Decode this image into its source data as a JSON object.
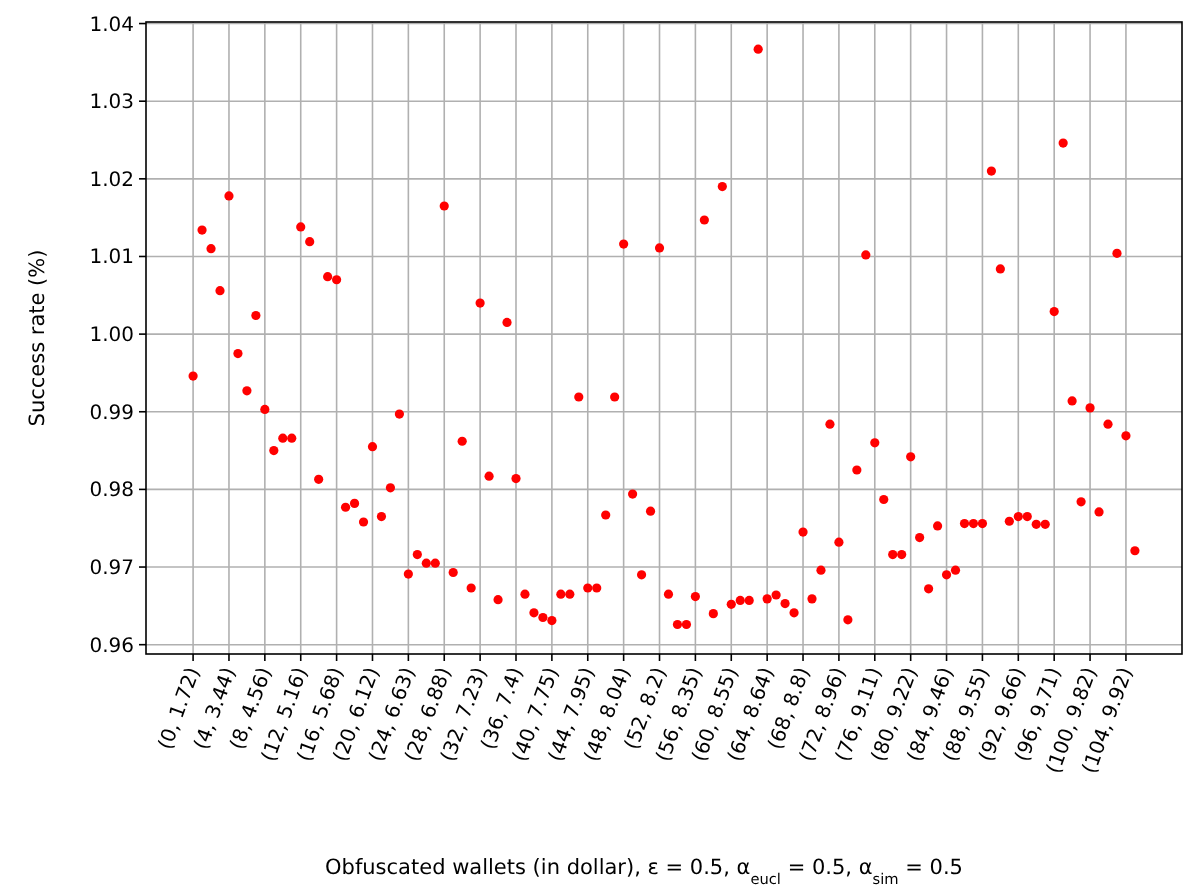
{
  "chart_data": {
    "type": "scatter",
    "xlabel": "Obfuscated wallets (in dollar), ε = 0.5, α$_{eucl}$  = 0.5, α$_{sim}$  = 0.5",
    "ylabel": "Success rate (%)",
    "categories": [
      "(0, 1.72)",
      null,
      null,
      null,
      "(4, 3.44)",
      null,
      null,
      null,
      "(8, 4.56)",
      null,
      null,
      null,
      "(12, 5.16)",
      null,
      null,
      null,
      "(16, 5.68)",
      null,
      null,
      null,
      "(20, 6.12)",
      null,
      null,
      null,
      "(24, 6.63)",
      null,
      null,
      null,
      "(28, 6.88)",
      null,
      null,
      null,
      "(32, 7.23)",
      null,
      null,
      null,
      "(36, 7.4)",
      null,
      null,
      null,
      "(40, 7.75)",
      null,
      null,
      null,
      "(44, 7.95)",
      null,
      null,
      null,
      "(48, 8.04)",
      null,
      null,
      null,
      "(52, 8.2)",
      null,
      null,
      null,
      "(56, 8.35)",
      null,
      null,
      null,
      "(60, 8.55)",
      null,
      null,
      null,
      "(64, 8.64)",
      null,
      null,
      null,
      "(68, 8.8)",
      null,
      null,
      null,
      "(72, 8.96)",
      null,
      null,
      null,
      "(76, 9.11)",
      null,
      null,
      null,
      "(80, 9.22)",
      null,
      null,
      null,
      "(84, 9.46)",
      null,
      null,
      null,
      "(88, 9.55)",
      null,
      null,
      null,
      "(92, 9.66)",
      null,
      null,
      null,
      "(96, 9.71)",
      null,
      null,
      null,
      "(100, 9.82)",
      null,
      null,
      null,
      "(104, 9.92)",
      null
    ],
    "series": [
      {
        "color": "#ff0000",
        "values": [
          0.9946,
          1.0134,
          1.011,
          1.0056,
          1.0178,
          0.9975,
          0.9927,
          1.0024,
          0.9903,
          0.985,
          0.9866,
          0.9866,
          1.0138,
          1.0119,
          0.9813,
          1.0074,
          1.007,
          0.9777,
          0.9782,
          0.9758,
          0.9855,
          0.9765,
          0.9802,
          0.9897,
          0.9691,
          0.9716,
          0.9705,
          0.9705,
          1.0165,
          0.9693,
          0.9862,
          0.9673,
          1.004,
          0.9817,
          0.9658,
          1.0015,
          0.9814,
          0.9665,
          0.9641,
          0.9635,
          0.9631,
          0.9665,
          0.9665,
          0.9919,
          0.9673,
          0.9673,
          0.9767,
          0.9919,
          1.0116,
          0.9794,
          0.969,
          0.9772,
          1.0111,
          0.9665,
          0.9626,
          0.9626,
          0.9662,
          1.0147,
          0.964,
          1.019,
          0.9652,
          0.9657,
          0.9657,
          1.0367,
          0.9659,
          0.9664,
          0.9653,
          0.9641,
          0.9745,
          0.9659,
          0.9696,
          0.9884,
          0.9732,
          0.9632,
          0.9825,
          1.0102,
          0.986,
          0.9787,
          0.9716,
          0.9716,
          0.9842,
          0.9738,
          0.9672,
          0.9753,
          0.969,
          0.9696,
          0.9756,
          0.9756,
          0.9756,
          1.021,
          1.0084,
          0.9759,
          0.9765,
          0.9765,
          0.9755,
          0.9755,
          1.0029,
          1.0246,
          0.9914,
          0.9784,
          0.9905,
          0.9771,
          0.9884,
          1.0104,
          0.9869,
          0.9721
        ]
      }
    ],
    "ylim": [
      0.9588,
      1.0402
    ],
    "yticks": [
      {
        "value": 0.96,
        "label": "0.96"
      },
      {
        "value": 0.97,
        "label": "0.97"
      },
      {
        "value": 0.98,
        "label": "0.98"
      },
      {
        "value": 0.99,
        "label": "0.99"
      },
      {
        "value": 1.0,
        "label": "1.00"
      },
      {
        "value": 1.01,
        "label": "1.01"
      },
      {
        "value": 1.02,
        "label": "1.02"
      },
      {
        "value": 1.03,
        "label": "1.03"
      },
      {
        "value": 1.04,
        "label": "1.04"
      }
    ],
    "grid": true,
    "marker": "circle"
  }
}
